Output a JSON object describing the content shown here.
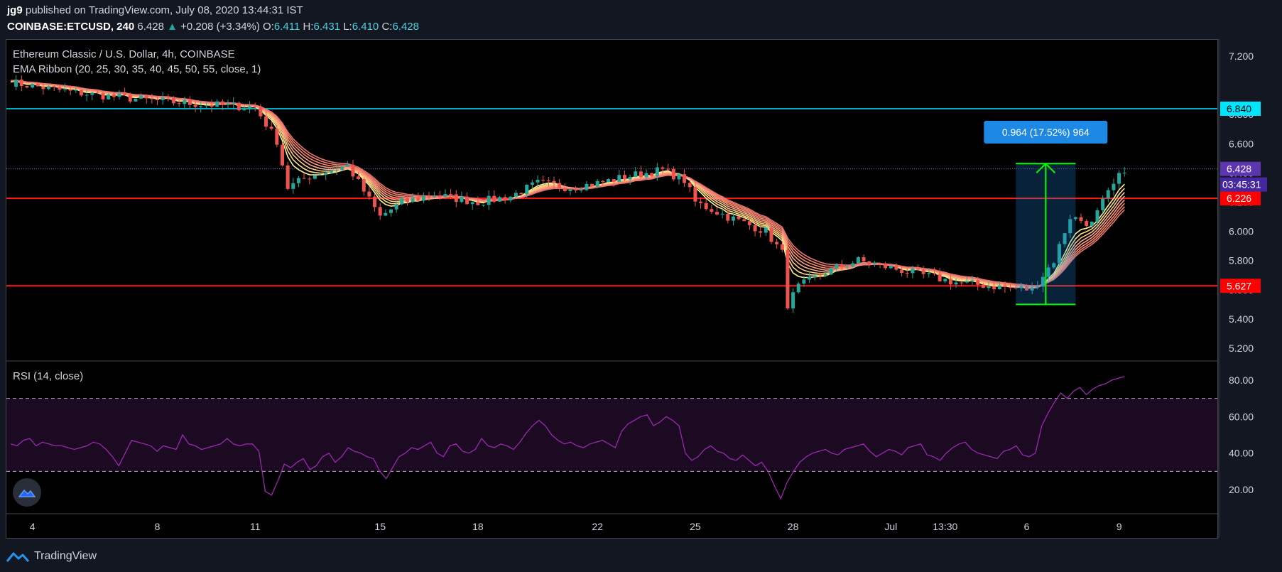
{
  "header": {
    "author": "jg9",
    "published": " published on TradingView.com, July 08, 2020 13:44:31 IST",
    "symbol": "COINBASE:ETCUSD, 240",
    "last": "6.428",
    "change": "+0.208 (+3.34%)",
    "o_label": "O:",
    "o": "6.411",
    "h_label": "H:",
    "h": "6.431",
    "l_label": "L:",
    "l": "6.410",
    "c_label": "C:",
    "c": "6.428"
  },
  "legend": {
    "title": "Ethereum Classic / U.S. Dollar, 4h, COINBASE",
    "indicator": "EMA Ribbon (20, 25, 30, 35, 40, 45, 50, 55, close, 1)",
    "rsi": "RSI (14, close)"
  },
  "measure_label": "0.964 (17.52%) 964",
  "price_tags": {
    "cyan": "6.840",
    "last": "6.428",
    "countdown": "03:45:31",
    "red1": "6.226",
    "red2": "5.627"
  },
  "footer": {
    "brand": "TradingView"
  },
  "colors": {
    "background": "#000000",
    "up_candle": "#26a69a",
    "down_candle": "#ef5350",
    "cyan_line": "#00e5ff",
    "red_line": "#ff1a1a",
    "rsi_line": "#9c27b0",
    "measure_box": "#1e88e5",
    "measure_arrow": "#00ff00",
    "ribbon": [
      "#fff59d",
      "#ffe082",
      "#ffcc80",
      "#ffab91",
      "#ff9e80",
      "#ff8a65",
      "#f4826c",
      "#e57373"
    ]
  },
  "chart_data": [
    {
      "type": "candlestick",
      "title": "Ethereum Classic / U.S. Dollar, 4h, COINBASE",
      "ylim": [
        5.15,
        7.3
      ],
      "y_ticks": [
        "7.200",
        "6.800",
        "6.600",
        "6.400",
        "6.200",
        "6.000",
        "5.800",
        "5.600",
        "5.400",
        "5.200"
      ],
      "x_ticks": [
        "4",
        "8",
        "11",
        "15",
        "18",
        "22",
        "25",
        "28",
        "Jul",
        "13:30",
        "6",
        "9"
      ],
      "x_tick_index": [
        4,
        27,
        45,
        68,
        86,
        108,
        126,
        144,
        162,
        172,
        187,
        204
      ],
      "horizontal_lines": [
        6.84,
        6.226,
        5.627
      ],
      "last_price_line": 6.428,
      "measure": {
        "from": 5.5,
        "to": 6.464,
        "label": "0.964 (17.52%) 964"
      },
      "ohlc_path": [
        [
          0,
          7.02
        ],
        [
          12,
          6.95
        ],
        [
          25,
          6.9
        ],
        [
          35,
          6.87
        ],
        [
          45,
          6.85
        ],
        [
          49,
          6.62
        ],
        [
          51,
          6.3
        ],
        [
          55,
          6.38
        ],
        [
          62,
          6.45
        ],
        [
          68,
          6.1
        ],
        [
          72,
          6.2
        ],
        [
          78,
          6.25
        ],
        [
          86,
          6.2
        ],
        [
          92,
          6.24
        ],
        [
          97,
          6.33
        ],
        [
          103,
          6.3
        ],
        [
          108,
          6.33
        ],
        [
          114,
          6.38
        ],
        [
          120,
          6.42
        ],
        [
          124,
          6.35
        ],
        [
          126,
          6.2
        ],
        [
          132,
          6.1
        ],
        [
          139,
          6.0
        ],
        [
          142,
          5.85
        ],
        [
          143,
          5.5
        ],
        [
          145,
          5.62
        ],
        [
          150,
          5.72
        ],
        [
          156,
          5.8
        ],
        [
          162,
          5.75
        ],
        [
          168,
          5.7
        ],
        [
          174,
          5.65
        ],
        [
          182,
          5.62
        ],
        [
          188,
          5.6
        ],
        [
          192,
          5.8
        ],
        [
          195,
          6.1
        ],
        [
          199,
          6.05
        ],
        [
          201,
          6.2
        ],
        [
          205,
          6.43
        ]
      ]
    },
    {
      "type": "line",
      "title": "RSI (14, close)",
      "ylim": [
        10,
        85
      ],
      "y_ticks": [
        "80.00",
        "60.00",
        "40.00",
        "20.00"
      ],
      "bands": [
        70,
        30
      ],
      "values": [
        45,
        44,
        47,
        48,
        44,
        46,
        45,
        44,
        44,
        43,
        42,
        43,
        44,
        46,
        45,
        42,
        38,
        33,
        40,
        47,
        46,
        45,
        44,
        41,
        44,
        43,
        42,
        50,
        45,
        44,
        42,
        43,
        44,
        45,
        48,
        45,
        44,
        45,
        45,
        41,
        19,
        17,
        25,
        34,
        32,
        35,
        37,
        31,
        33,
        38,
        40,
        35,
        38,
        43,
        41,
        40,
        38,
        37,
        30,
        26,
        32,
        38,
        40,
        43,
        42,
        44,
        46,
        40,
        38,
        44,
        45,
        41,
        40,
        42,
        48,
        44,
        43,
        45,
        44,
        42,
        46,
        51,
        55,
        58,
        55,
        50,
        47,
        45,
        46,
        44,
        43,
        45,
        46,
        47,
        45,
        43,
        52,
        56,
        58,
        60,
        61,
        55,
        57,
        60,
        58,
        55,
        40,
        36,
        38,
        42,
        44,
        41,
        40,
        37,
        36,
        39,
        36,
        33,
        35,
        30,
        22,
        15,
        24,
        30,
        35,
        38,
        40,
        41,
        42,
        40,
        39,
        42,
        43,
        44,
        45,
        41,
        38,
        40,
        42,
        41,
        39,
        43,
        44,
        45,
        39,
        38,
        36,
        40,
        43,
        45,
        46,
        42,
        40,
        39,
        38,
        37,
        41,
        42,
        44,
        39,
        38,
        40,
        55,
        62,
        68,
        73,
        70,
        74,
        76,
        72,
        75,
        77,
        78,
        80,
        81,
        82
      ]
    }
  ]
}
